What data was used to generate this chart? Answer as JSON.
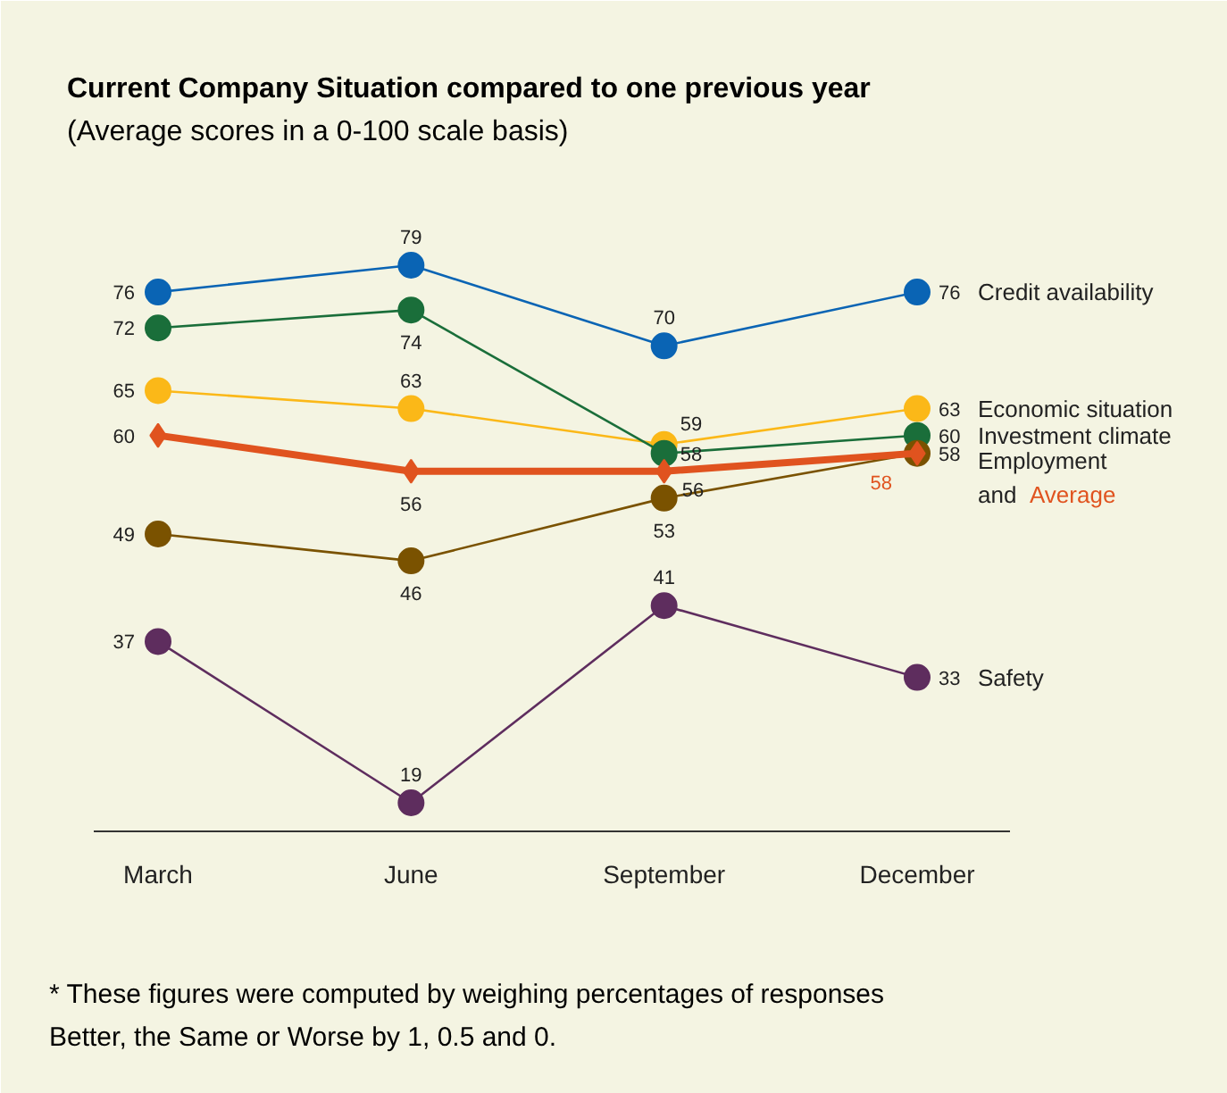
{
  "chart_data": {
    "type": "line",
    "title": "Current Company Situation compared to one previous year",
    "subtitle": "(Average scores in a 0-100 scale basis)",
    "categories": [
      "March",
      "June",
      "September",
      "December"
    ],
    "tick_labels": "x",
    "grid": false,
    "legend": false,
    "data_labels": true,
    "marker": "circle",
    "series": [
      {
        "name": "Credit availability",
        "color": "#0a64b4",
        "values": [
          76,
          79,
          70,
          76
        ]
      },
      {
        "name": "Economic situation",
        "color": "#fbb818",
        "values": [
          65,
          63,
          59,
          63
        ]
      },
      {
        "name": "Investment climate",
        "color": "#1a6e3a",
        "values": [
          72,
          74,
          58,
          60
        ]
      },
      {
        "name": "Employment",
        "color": "#7a5200",
        "values": [
          49,
          46,
          53,
          58
        ]
      },
      {
        "name": "Average",
        "color": "#e0531f",
        "values": [
          60,
          56,
          56,
          58
        ],
        "marker": "diamond"
      },
      {
        "name": "Safety",
        "color": "#5e2d5e",
        "values": [
          37,
          19,
          41,
          33
        ]
      }
    ],
    "annotations": [
      "and",
      "* These figures were computed by weighing percentages of responses",
      "Better, the Same or Worse by 1, 0.5 and 0."
    ]
  }
}
